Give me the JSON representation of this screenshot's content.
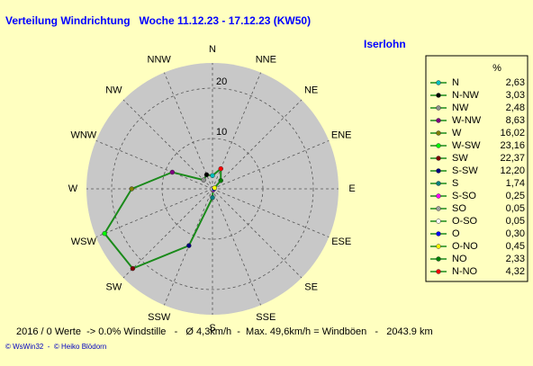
{
  "chart_data": {
    "type": "radar",
    "title": "Verteilung Windrichtung   Woche 11.12.23 - 17.12.23 (KW50)",
    "subtitle": "Iserlohn",
    "direction": "counterclockwise",
    "categories": [
      "N",
      "NNW",
      "NW",
      "WNW",
      "W",
      "WSW",
      "SW",
      "SSW",
      "S",
      "SSE",
      "SE",
      "ESE",
      "E",
      "ENE",
      "NE",
      "NNE"
    ],
    "legend_title": "%",
    "legend_names": [
      "N",
      "N-NW",
      "NW",
      "W-NW",
      "W",
      "W-SW",
      "SW",
      "S-SW",
      "S",
      "S-SO",
      "SO",
      "O-SO",
      "O",
      "O-NO",
      "NO",
      "N-NO"
    ],
    "values": [
      2.63,
      3.03,
      2.48,
      8.63,
      16.02,
      23.16,
      22.37,
      12.2,
      1.74,
      0.25,
      0.05,
      0.05,
      0.3,
      0.45,
      2.33,
      4.32
    ],
    "value_labels": [
      "2,63",
      "3,03",
      "2,48",
      "8,63",
      "16,02",
      "23,16",
      "22,37",
      "12,20",
      "1,74",
      "0,25",
      "0,05",
      "0,05",
      "0,30",
      "0,45",
      "2,33",
      "4,32"
    ],
    "colors": [
      "#00c0c0",
      "#000000",
      "#909090",
      "#800080",
      "#808000",
      "#00ff00",
      "#800000",
      "#000080",
      "#008080",
      "#ff00ff",
      "#a0a0a0",
      "#ffffff",
      "#0000ff",
      "#ffff00",
      "#008000",
      "#ff0000"
    ],
    "line_color": "#1a8a1a",
    "rlim": [
      0,
      25
    ],
    "rticks": [
      10,
      20
    ],
    "grid": true,
    "footer": "2016 / 0 Werte  -> 0.0% Windstille   -   Ø 4,3km/h  -  Max. 49,6km/h = Windböen   -   2043.9 km",
    "credit": "© WsWin32  -  © Heiko Blödorn"
  }
}
